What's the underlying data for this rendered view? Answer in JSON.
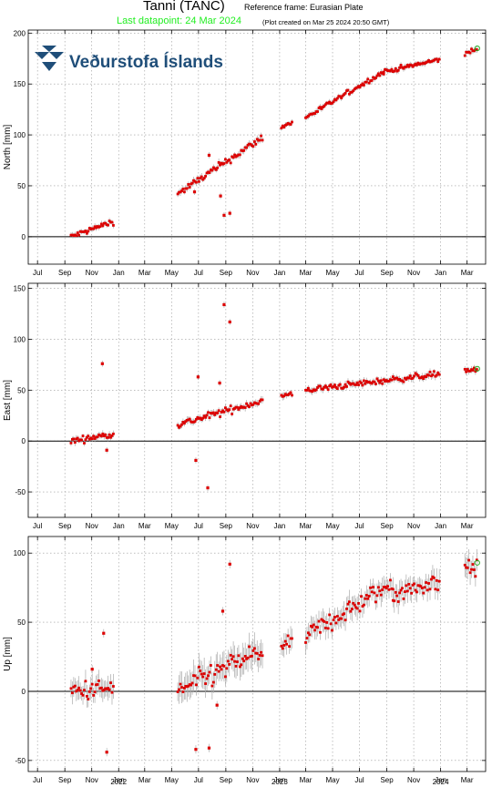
{
  "header": {
    "title": "Tanni (TANC)",
    "reference_frame": "Reference frame: Eurasian Plate",
    "last_datapoint": "Last datapoint: 24 Mar 2024",
    "created": "(Plot created on Mar 25 2024 20:50 GMT)"
  },
  "logo": {
    "text": "Veðurstofa Íslands"
  },
  "colors": {
    "data": "#dd0000",
    "errorbar": "#aaaaaa",
    "latest": "#22aa22",
    "last_datapoint": "#22ee22"
  },
  "chart_data": [
    {
      "type": "scatter",
      "title": "",
      "ylabel": "North [mm]",
      "ylim": [
        -27,
        203
      ],
      "yticks": [
        0,
        50,
        100,
        150,
        200
      ],
      "x_range": [
        "2021-06-10",
        "2024-04-12"
      ],
      "x_tick_labels": [
        "Jul",
        "Sep",
        "Nov",
        "Jan",
        "Mar",
        "May",
        "Jul",
        "Sep",
        "Nov",
        "Jan",
        "Mar",
        "May",
        "Jul",
        "Sep",
        "Nov",
        "Jan",
        "Mar"
      ],
      "grid": true,
      "zero_line": true,
      "segments": [
        {
          "from": "2021-09-15",
          "to": "2021-12-20",
          "start": 0,
          "end": 15,
          "noise": 2.5,
          "err": 2.5,
          "step": 3
        },
        {
          "from": "2022-05-15",
          "to": "2022-11-25",
          "start": 42,
          "end": 98,
          "noise": 3,
          "err": 3,
          "step": 3
        },
        {
          "from": "2023-01-05",
          "to": "2023-01-30",
          "start": 108,
          "end": 112,
          "noise": 2,
          "err": 2.5,
          "step": 3
        },
        {
          "from": "2023-03-01",
          "to": "2023-08-25",
          "start": 117,
          "end": 162,
          "noise": 2,
          "err": 2.5,
          "step": 3
        },
        {
          "from": "2023-08-25",
          "to": "2023-12-31",
          "start": 162,
          "end": 174,
          "noise": 2,
          "err": 2.5,
          "step": 3
        },
        {
          "from": "2024-02-25",
          "to": "2024-03-24",
          "start": 180,
          "end": 184,
          "noise": 2,
          "err": 2.5,
          "step": 3
        }
      ],
      "outliers": [
        {
          "date": "2022-06-22",
          "value": 44
        },
        {
          "date": "2022-08-20",
          "value": 40
        },
        {
          "date": "2022-08-28",
          "value": 21
        },
        {
          "date": "2022-09-10",
          "value": 23
        },
        {
          "date": "2022-07-25",
          "value": 80
        }
      ],
      "latest": {
        "date": "2024-03-24",
        "value": 185
      }
    },
    {
      "type": "scatter",
      "title": "",
      "ylabel": "East [mm]",
      "ylim": [
        -75,
        155
      ],
      "yticks": [
        -50,
        0,
        50,
        100,
        150
      ],
      "x_range": [
        "2021-06-10",
        "2024-04-12"
      ],
      "x_tick_labels": [
        "Jul",
        "Sep",
        "Nov",
        "Jan",
        "Mar",
        "May",
        "Jul",
        "Sep",
        "Nov",
        "Jan",
        "Mar",
        "May",
        "Jul",
        "Sep",
        "Nov",
        "Jan",
        "Mar"
      ],
      "grid": true,
      "zero_line": true,
      "segments": [
        {
          "from": "2021-09-15",
          "to": "2021-12-20",
          "start": 0,
          "end": 7,
          "noise": 2.5,
          "err": 3,
          "step": 3
        },
        {
          "from": "2022-05-15",
          "to": "2022-11-25",
          "start": 16,
          "end": 40,
          "noise": 3,
          "err": 3,
          "step": 3
        },
        {
          "from": "2023-01-05",
          "to": "2023-01-30",
          "start": 44,
          "end": 46,
          "noise": 2,
          "err": 3,
          "step": 3
        },
        {
          "from": "2023-03-01",
          "to": "2023-12-31",
          "start": 50,
          "end": 66,
          "noise": 2.5,
          "err": 3,
          "step": 3
        },
        {
          "from": "2024-02-25",
          "to": "2024-03-24",
          "start": 70,
          "end": 69,
          "noise": 2,
          "err": 3,
          "step": 3
        }
      ],
      "outliers": [
        {
          "date": "2021-11-25",
          "value": 76
        },
        {
          "date": "2021-12-05",
          "value": -9
        },
        {
          "date": "2022-06-25",
          "value": -19
        },
        {
          "date": "2022-06-30",
          "value": 63
        },
        {
          "date": "2022-07-22",
          "value": -46
        },
        {
          "date": "2022-08-18",
          "value": 57
        },
        {
          "date": "2022-08-28",
          "value": 134
        },
        {
          "date": "2022-09-10",
          "value": 117
        }
      ],
      "latest": {
        "date": "2024-03-24",
        "value": 71
      }
    },
    {
      "type": "scatter",
      "title": "",
      "ylabel": "Up [mm]",
      "ylim": [
        -58,
        112
      ],
      "yticks": [
        -50,
        0,
        50,
        100
      ],
      "x_range": [
        "2021-06-10",
        "2024-04-12"
      ],
      "x_tick_labels": [
        "Jul",
        "Sep",
        "Nov",
        "Jan",
        "Mar",
        "May",
        "Jul",
        "Sep",
        "Nov",
        "Jan",
        "Mar",
        "May",
        "Jul",
        "Sep",
        "Nov",
        "Jan",
        "Mar"
      ],
      "year_labels": [
        "2022",
        "2023",
        "2024"
      ],
      "grid": true,
      "zero_line": true,
      "segments": [
        {
          "from": "2021-09-15",
          "to": "2021-12-20",
          "start": 0,
          "end": 2,
          "noise": 6,
          "err": 7,
          "step": 3
        },
        {
          "from": "2022-05-15",
          "to": "2022-11-25",
          "start": 0,
          "end": 30,
          "noise": 7,
          "err": 9,
          "step": 3
        },
        {
          "from": "2023-01-05",
          "to": "2023-01-30",
          "start": 32,
          "end": 35,
          "noise": 4,
          "err": 7,
          "step": 3
        },
        {
          "from": "2023-03-01",
          "to": "2023-09-15",
          "start": 40,
          "end": 78,
          "noise": 6,
          "err": 7,
          "step": 3
        },
        {
          "from": "2023-09-15",
          "to": "2023-12-31",
          "start": 70,
          "end": 80,
          "noise": 6,
          "err": 7,
          "step": 3
        },
        {
          "from": "2024-02-25",
          "to": "2024-03-24",
          "start": 92,
          "end": 88,
          "noise": 5,
          "err": 7,
          "step": 3
        }
      ],
      "outliers": [
        {
          "date": "2021-11-02",
          "value": 16
        },
        {
          "date": "2021-11-28",
          "value": 42
        },
        {
          "date": "2021-12-05",
          "value": -44
        },
        {
          "date": "2022-06-25",
          "value": -42
        },
        {
          "date": "2022-07-25",
          "value": -41
        },
        {
          "date": "2022-08-25",
          "value": 58
        },
        {
          "date": "2022-09-10",
          "value": 92
        },
        {
          "date": "2022-08-12",
          "value": -10
        }
      ],
      "latest": {
        "date": "2024-03-24",
        "value": 93
      }
    }
  ]
}
